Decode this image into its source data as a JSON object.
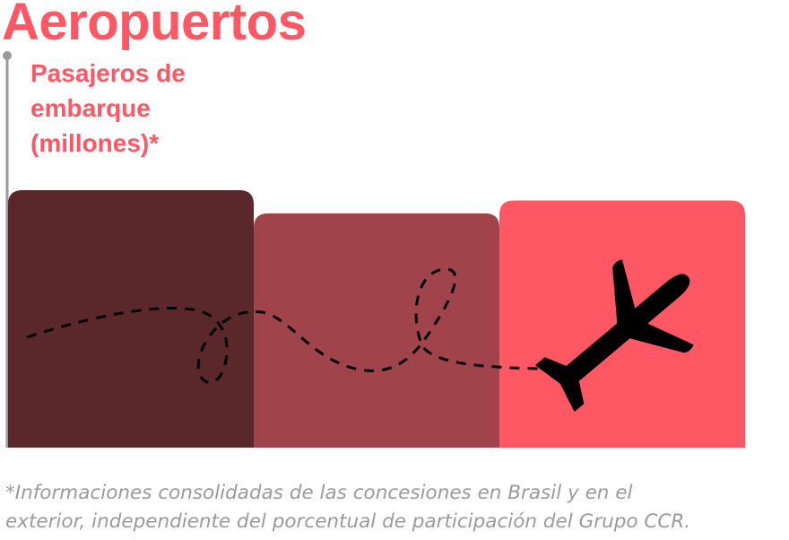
{
  "title": "Aeropuertos",
  "chart_data": {
    "type": "bar",
    "ylabel": "Pasajeros de embarque (millones)*",
    "categories": [
      "",
      "",
      ""
    ],
    "values": [
      100,
      91,
      96
    ],
    "ylim": [
      0,
      120
    ],
    "colors": [
      "#5a272b",
      "#a1434a",
      "#ff5864"
    ],
    "grid": false,
    "legend": "none"
  },
  "footnote": {
    "line1": "*Informaciones consolidadas de las concesiones en Brasil y en el",
    "line2": "exterior, independiente del porcentual de participación del Grupo CCR."
  },
  "icons": {
    "airplane": "airplane-icon",
    "flight_path": "dashed-flight-path"
  },
  "accent_color": "#ff5864",
  "axis_color": "#9a9a9a"
}
